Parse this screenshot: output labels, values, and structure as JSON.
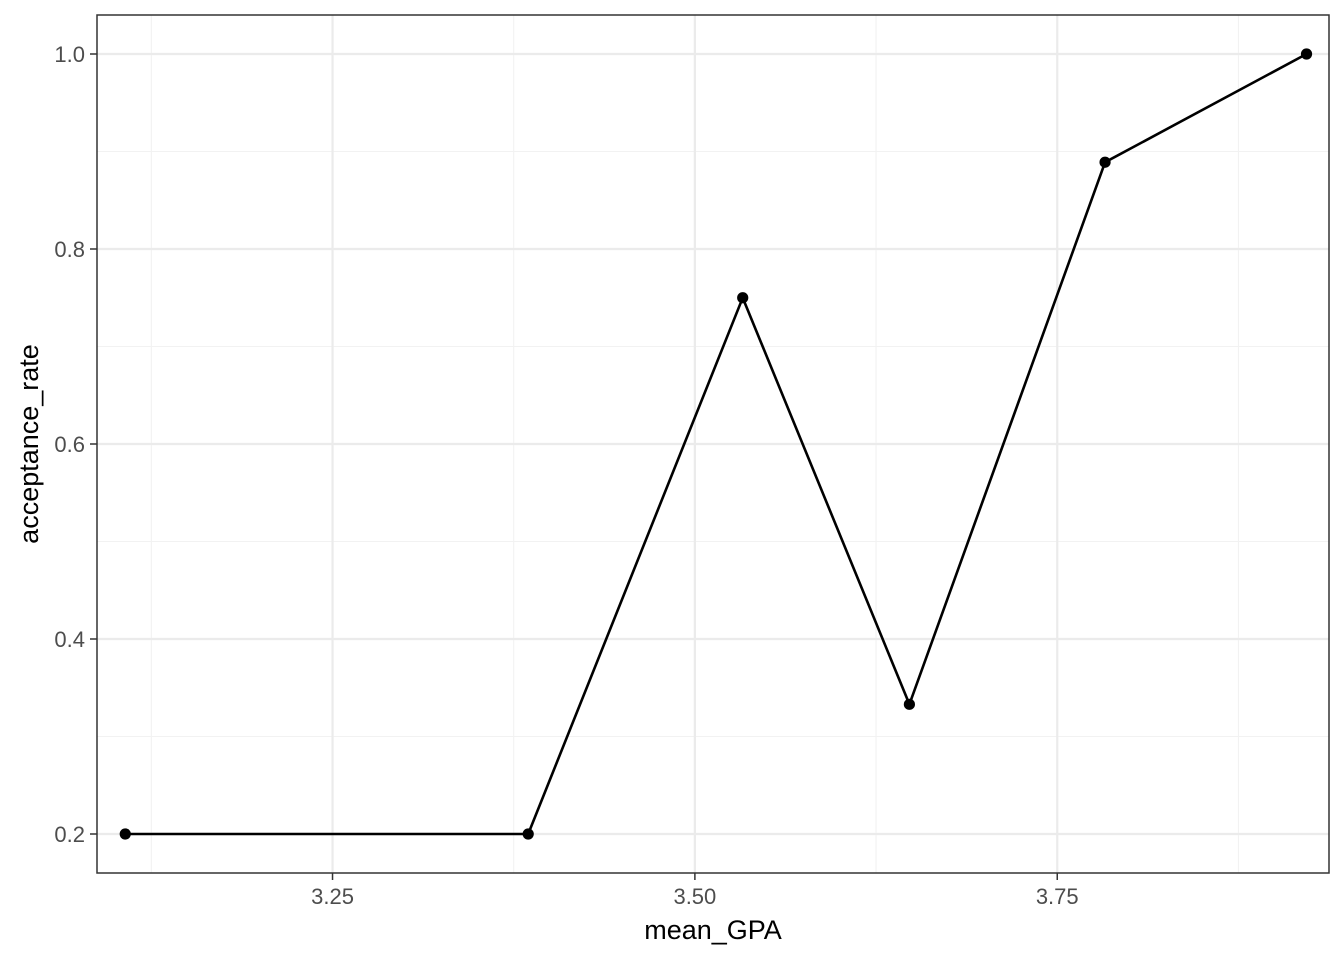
{
  "chart_data": {
    "type": "line",
    "xlabel": "mean_GPA",
    "ylabel": "acceptance_rate",
    "xlim": [
      3.0875,
      3.9375
    ],
    "ylim": [
      0.16,
      1.04
    ],
    "x_ticks": [
      3.25,
      3.5,
      3.75
    ],
    "x_tick_labels": [
      "3.25",
      "3.50",
      "3.75"
    ],
    "x_minor_ticks": [
      3.125,
      3.375,
      3.625,
      3.875
    ],
    "y_ticks": [
      0.2,
      0.4,
      0.6,
      0.8,
      1.0
    ],
    "y_tick_labels": [
      "0.2",
      "0.4",
      "0.6",
      "0.8",
      "1.0"
    ],
    "y_minor_ticks": [
      0.3,
      0.5,
      0.7,
      0.9
    ],
    "grid": true,
    "series": [
      {
        "x": [
          3.107,
          3.385,
          3.533,
          3.648,
          3.783,
          3.922
        ],
        "y": [
          0.2,
          0.2,
          0.75,
          0.333,
          0.889,
          1.0
        ],
        "color": "#000000",
        "markers": true
      }
    ]
  }
}
